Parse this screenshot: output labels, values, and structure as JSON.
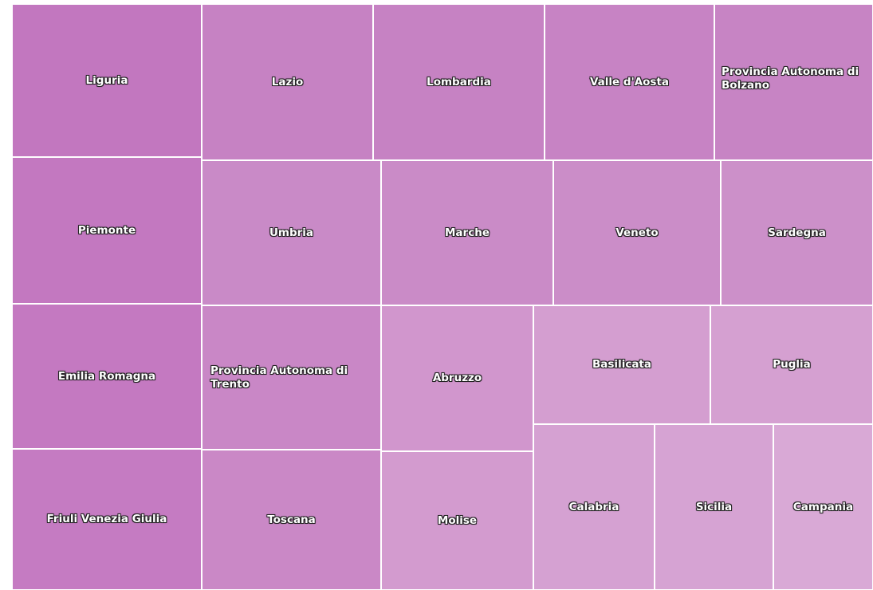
{
  "cells": [
    {
      "label": "Liguria"
    },
    {
      "label": "Piemonte"
    },
    {
      "label": "Emilia Romagna"
    },
    {
      "label": "Friuli Venezia Giulia"
    },
    {
      "label": "Lazio"
    },
    {
      "label": "Lombardia"
    },
    {
      "label": "Valle d'Aosta"
    },
    {
      "label": "Provincia Autonoma di Bolzano"
    },
    {
      "label": "Umbria"
    },
    {
      "label": "Marche"
    },
    {
      "label": "Veneto"
    },
    {
      "label": "Sardegna"
    },
    {
      "label": "Provincia Autonoma di Trento"
    },
    {
      "label": "Toscana"
    },
    {
      "label": "Abruzzo"
    },
    {
      "label": "Molise"
    },
    {
      "label": "Basilicata"
    },
    {
      "label": "Puglia"
    },
    {
      "label": "Calabria"
    },
    {
      "label": "Sicilia"
    },
    {
      "label": "Campania"
    }
  ]
}
